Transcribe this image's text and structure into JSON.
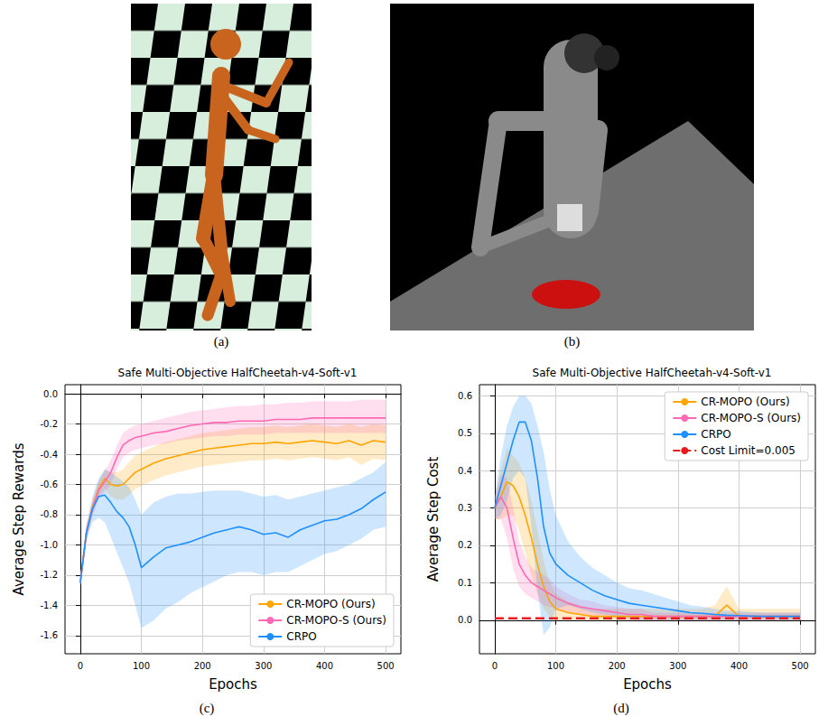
{
  "images": [
    {
      "caption": "(a)"
    },
    {
      "caption": "(b)"
    }
  ],
  "chart_data": [
    {
      "type": "line",
      "caption": "(c)",
      "title": "Safe Multi-Objective HalfCheetah-v4-Soft-v1",
      "x_label": "Epochs",
      "y_label": "Average Step Rewards",
      "x": [
        0,
        10,
        20,
        30,
        40,
        50,
        60,
        70,
        80,
        90,
        100,
        120,
        140,
        160,
        180,
        200,
        220,
        240,
        260,
        280,
        300,
        320,
        340,
        360,
        380,
        400,
        420,
        440,
        460,
        480,
        500
      ],
      "xlim": [
        -25,
        525
      ],
      "xticks": [
        0,
        100,
        200,
        300,
        400,
        500
      ],
      "ylim": [
        -1.72,
        0.06
      ],
      "yticks": [
        -1.6,
        -1.4,
        -1.2,
        {
          "value": -1.0,
          "label": "-1.0"
        },
        -0.8,
        -0.6,
        -0.4,
        -0.2,
        {
          "value": 0.0,
          "label": "0.0"
        }
      ],
      "grid": true,
      "legend": "lower right",
      "series": [
        {
          "name": "CR-MOPO (Ours)",
          "color": "#ffa500",
          "values": [
            -1.25,
            -0.92,
            -0.75,
            -0.63,
            -0.56,
            -0.6,
            -0.61,
            -0.6,
            -0.56,
            -0.52,
            -0.5,
            -0.46,
            -0.43,
            -0.41,
            -0.39,
            -0.37,
            -0.36,
            -0.35,
            -0.34,
            -0.33,
            -0.33,
            -0.32,
            -0.33,
            -0.32,
            -0.31,
            -0.32,
            -0.33,
            -0.31,
            -0.34,
            -0.31,
            -0.32
          ],
          "lower": [
            -1.28,
            -0.97,
            -0.8,
            -0.68,
            -0.63,
            -0.68,
            -0.7,
            -0.7,
            -0.67,
            -0.63,
            -0.61,
            -0.57,
            -0.54,
            -0.52,
            -0.5,
            -0.48,
            -0.47,
            -0.46,
            -0.45,
            -0.44,
            -0.44,
            -0.43,
            -0.44,
            -0.43,
            -0.42,
            -0.43,
            -0.44,
            -0.42,
            -0.47,
            -0.43,
            -0.44
          ],
          "upper": [
            -1.22,
            -0.87,
            -0.7,
            -0.58,
            -0.5,
            -0.52,
            -0.52,
            -0.5,
            -0.45,
            -0.41,
            -0.39,
            -0.35,
            -0.32,
            -0.3,
            -0.28,
            -0.26,
            -0.25,
            -0.24,
            -0.23,
            -0.22,
            -0.22,
            -0.21,
            -0.22,
            -0.21,
            -0.2,
            -0.21,
            -0.22,
            -0.2,
            -0.22,
            -0.2,
            -0.21
          ]
        },
        {
          "name": "CR-MOPO-S (Ours)",
          "color": "#ff69b4",
          "values": [
            -1.25,
            -0.92,
            -0.76,
            -0.64,
            -0.58,
            -0.52,
            -0.42,
            -0.34,
            -0.31,
            -0.29,
            -0.28,
            -0.26,
            -0.25,
            -0.23,
            -0.21,
            -0.2,
            -0.19,
            -0.19,
            -0.18,
            -0.18,
            -0.18,
            -0.17,
            -0.17,
            -0.17,
            -0.16,
            -0.16,
            -0.16,
            -0.16,
            -0.16,
            -0.16,
            -0.16
          ],
          "lower": [
            -1.28,
            -0.97,
            -0.81,
            -0.7,
            -0.65,
            -0.6,
            -0.5,
            -0.42,
            -0.39,
            -0.37,
            -0.36,
            -0.34,
            -0.33,
            -0.31,
            -0.3,
            -0.29,
            -0.28,
            -0.28,
            -0.27,
            -0.27,
            -0.27,
            -0.26,
            -0.26,
            -0.26,
            -0.26,
            -0.26,
            -0.26,
            -0.26,
            -0.26,
            -0.26,
            -0.26
          ],
          "upper": [
            -1.22,
            -0.87,
            -0.71,
            -0.58,
            -0.51,
            -0.44,
            -0.34,
            -0.26,
            -0.23,
            -0.21,
            -0.2,
            -0.18,
            -0.16,
            -0.14,
            -0.12,
            -0.11,
            -0.1,
            -0.09,
            -0.08,
            -0.08,
            -0.07,
            -0.07,
            -0.06,
            -0.06,
            -0.05,
            -0.05,
            -0.05,
            -0.05,
            -0.04,
            -0.04,
            -0.04
          ]
        },
        {
          "name": "CRPO",
          "color": "#1e90ff",
          "values": [
            -1.25,
            -0.92,
            -0.76,
            -0.68,
            -0.67,
            -0.72,
            -0.78,
            -0.82,
            -0.88,
            -1.0,
            -1.15,
            -1.08,
            -1.02,
            -1.0,
            -0.98,
            -0.95,
            -0.92,
            -0.9,
            -0.88,
            -0.9,
            -0.93,
            -0.92,
            -0.95,
            -0.9,
            -0.87,
            -0.84,
            -0.83,
            -0.8,
            -0.76,
            -0.7,
            -0.65
          ],
          "lower": [
            -1.28,
            -0.97,
            -0.85,
            -0.82,
            -0.85,
            -0.95,
            -1.05,
            -1.15,
            -1.25,
            -1.4,
            -1.55,
            -1.5,
            -1.42,
            -1.38,
            -1.32,
            -1.28,
            -1.24,
            -1.2,
            -1.18,
            -1.18,
            -1.2,
            -1.18,
            -1.18,
            -1.14,
            -1.1,
            -1.06,
            -1.04,
            -1.0,
            -0.96,
            -0.9,
            -0.88
          ],
          "upper": [
            -1.22,
            -0.87,
            -0.68,
            -0.56,
            -0.5,
            -0.52,
            -0.55,
            -0.58,
            -0.62,
            -0.7,
            -0.8,
            -0.72,
            -0.68,
            -0.66,
            -0.66,
            -0.65,
            -0.64,
            -0.64,
            -0.64,
            -0.66,
            -0.68,
            -0.67,
            -0.7,
            -0.68,
            -0.66,
            -0.64,
            -0.62,
            -0.6,
            -0.56,
            -0.52,
            -0.45
          ]
        }
      ]
    },
    {
      "type": "line",
      "caption": "(d)",
      "title": "Safe Multi-Objective HalfCheetah-v4-Soft-v1",
      "x_label": "Epochs",
      "y_label": "Average Step Cost",
      "x": [
        0,
        10,
        20,
        30,
        40,
        50,
        60,
        70,
        80,
        90,
        100,
        120,
        140,
        160,
        180,
        200,
        220,
        240,
        260,
        280,
        300,
        320,
        340,
        360,
        380,
        400,
        420,
        440,
        460,
        480,
        500
      ],
      "xlim": [
        -25,
        525
      ],
      "xticks": [
        0,
        100,
        200,
        300,
        400,
        500
      ],
      "ylim": [
        -0.09,
        0.63
      ],
      "yticks": [
        {
          "value": 0.0,
          "label": "0.0"
        },
        0.1,
        0.2,
        0.3,
        0.4,
        0.5,
        0.6
      ],
      "grid": true,
      "legend": "upper right",
      "series": [
        {
          "name": "CR-MOPO (Ours)",
          "color": "#ffa500",
          "values": [
            0.3,
            0.33,
            0.37,
            0.36,
            0.33,
            0.28,
            0.22,
            0.15,
            0.09,
            0.05,
            0.03,
            0.02,
            0.015,
            0.01,
            0.01,
            0.01,
            0.01,
            0.01,
            0.01,
            0.01,
            0.01,
            0.01,
            0.01,
            0.01,
            0.04,
            0.01,
            0.01,
            0.01,
            0.01,
            0.01,
            0.01
          ],
          "lower": [
            0.27,
            0.27,
            0.28,
            0.28,
            0.24,
            0.18,
            0.12,
            0.07,
            0.03,
            0.01,
            0.0,
            0.0,
            0.0,
            0.0,
            0.0,
            0.0,
            0.0,
            0.0,
            0.0,
            0.0,
            0.0,
            0.0,
            0.0,
            0.0,
            0.0,
            0.0,
            0.0,
            0.0,
            0.0,
            0.0,
            0.0
          ],
          "upper": [
            0.33,
            0.4,
            0.46,
            0.44,
            0.42,
            0.38,
            0.32,
            0.24,
            0.16,
            0.1,
            0.07,
            0.05,
            0.04,
            0.03,
            0.03,
            0.03,
            0.03,
            0.03,
            0.03,
            0.03,
            0.03,
            0.03,
            0.03,
            0.04,
            0.09,
            0.03,
            0.03,
            0.03,
            0.03,
            0.03,
            0.03
          ]
        },
        {
          "name": "CR-MOPO-S (Ours)",
          "color": "#ff69b4",
          "values": [
            0.3,
            0.33,
            0.3,
            0.22,
            0.15,
            0.12,
            0.1,
            0.09,
            0.08,
            0.07,
            0.06,
            0.045,
            0.035,
            0.03,
            0.025,
            0.02,
            0.015,
            0.015,
            0.01,
            0.01,
            0.01,
            0.01,
            0.01,
            0.01,
            0.01,
            0.01,
            0.01,
            0.01,
            0.01,
            0.01,
            0.01
          ],
          "lower": [
            0.27,
            0.27,
            0.22,
            0.14,
            0.09,
            0.07,
            0.06,
            0.05,
            0.04,
            0.035,
            0.03,
            0.02,
            0.015,
            0.01,
            0.01,
            0.005,
            0.0,
            0.0,
            0.0,
            0.0,
            0.0,
            0.0,
            0.0,
            0.0,
            0.0,
            0.0,
            0.0,
            0.0,
            0.0,
            0.0,
            0.0
          ],
          "upper": [
            0.33,
            0.39,
            0.38,
            0.3,
            0.21,
            0.17,
            0.14,
            0.13,
            0.12,
            0.11,
            0.09,
            0.07,
            0.055,
            0.05,
            0.04,
            0.035,
            0.03,
            0.03,
            0.02,
            0.02,
            0.02,
            0.02,
            0.02,
            0.02,
            0.02,
            0.02,
            0.02,
            0.02,
            0.02,
            0.02,
            0.02
          ]
        },
        {
          "name": "CRPO",
          "color": "#1e90ff",
          "values": [
            0.3,
            0.36,
            0.42,
            0.48,
            0.53,
            0.53,
            0.48,
            0.38,
            0.25,
            0.18,
            0.15,
            0.12,
            0.1,
            0.08,
            0.065,
            0.055,
            0.045,
            0.04,
            0.035,
            0.03,
            0.025,
            0.02,
            0.018,
            0.015,
            0.013,
            0.012,
            0.011,
            0.01,
            0.01,
            0.01,
            0.01
          ],
          "lower": [
            0.27,
            0.28,
            0.32,
            0.38,
            0.4,
            0.38,
            0.25,
            0.08,
            -0.04,
            -0.02,
            0.03,
            0.04,
            0.03,
            0.02,
            0.015,
            0.01,
            0.005,
            0.0,
            0.0,
            0.0,
            0.0,
            0.0,
            0.0,
            0.0,
            0.0,
            0.0,
            0.0,
            0.0,
            0.0,
            0.0,
            0.0
          ],
          "upper": [
            0.33,
            0.44,
            0.52,
            0.57,
            0.6,
            0.6,
            0.58,
            0.52,
            0.45,
            0.35,
            0.28,
            0.21,
            0.17,
            0.14,
            0.12,
            0.1,
            0.085,
            0.08,
            0.07,
            0.06,
            0.05,
            0.04,
            0.036,
            0.03,
            0.026,
            0.024,
            0.022,
            0.02,
            0.02,
            0.02,
            0.02
          ]
        },
        {
          "name": "Cost Limit=0.005",
          "color": "#e8191c",
          "line_style": "dashed",
          "values": [
            0.005,
            0.005,
            0.005,
            0.005,
            0.005,
            0.005,
            0.005,
            0.005,
            0.005,
            0.005,
            0.005,
            0.005,
            0.005,
            0.005,
            0.005,
            0.005,
            0.005,
            0.005,
            0.005,
            0.005,
            0.005,
            0.005,
            0.005,
            0.005,
            0.005,
            0.005,
            0.005,
            0.005,
            0.005,
            0.005,
            0.005
          ]
        }
      ]
    }
  ]
}
